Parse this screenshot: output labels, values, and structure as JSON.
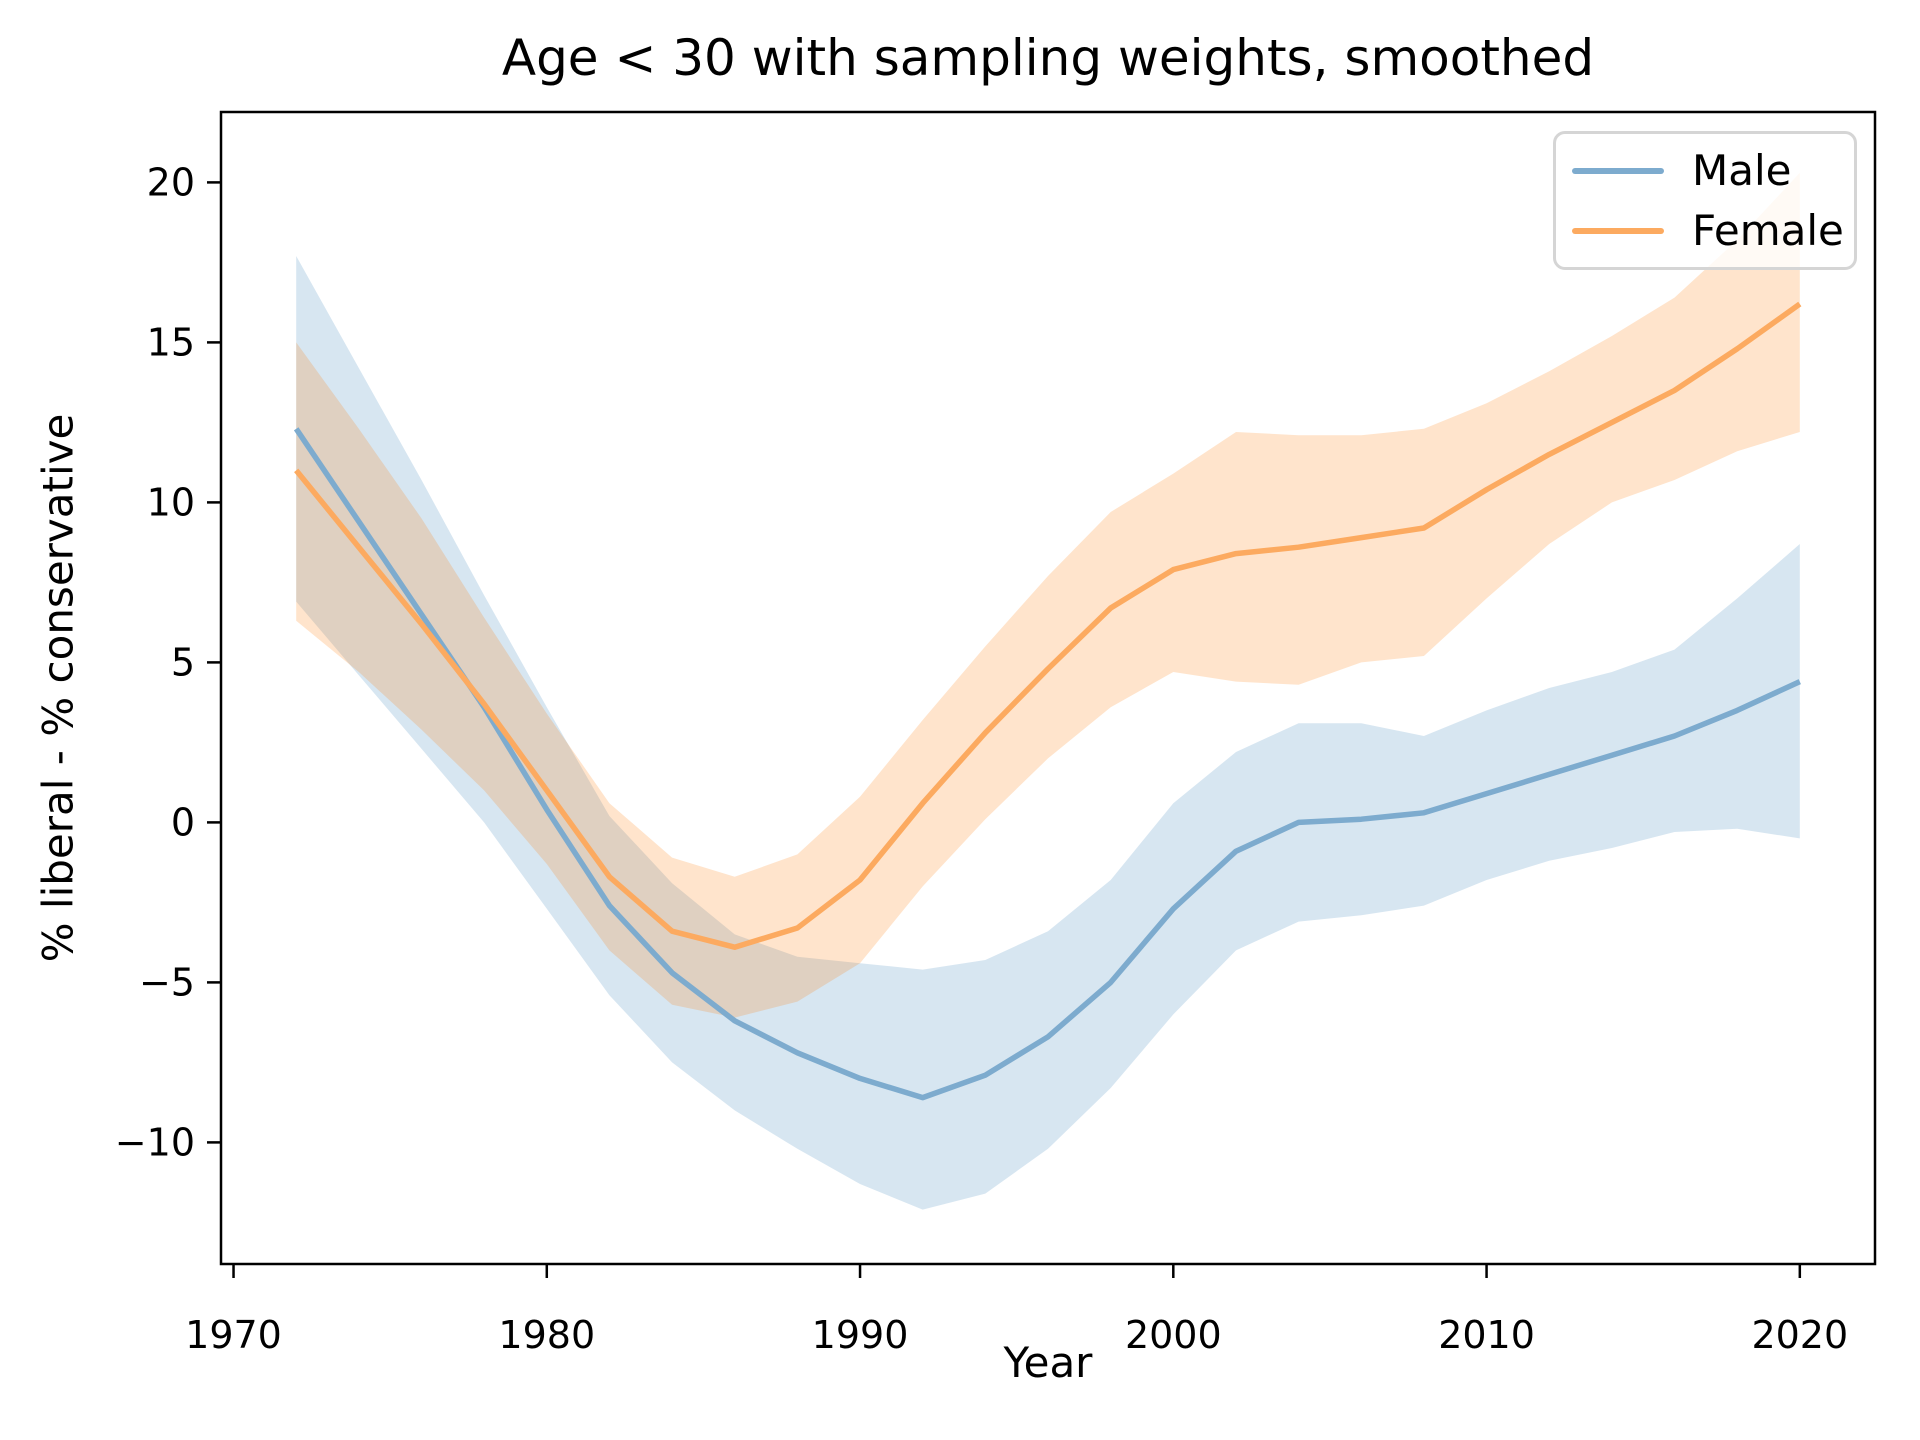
{
  "title": "Age < 30 with sampling weights, smoothed",
  "colors": {
    "male_line": "#7dabce",
    "female_line": "#fcaa60",
    "male_band_fill": "#1f77b4",
    "female_band_fill": "#ff7f0e",
    "male_band_opacity": 0.18,
    "female_band_opacity": 0.21,
    "axis": "#000000",
    "legend_border": "#d5d5d5"
  },
  "legend": {
    "items": [
      {
        "label": "Male",
        "color": "#7dabce"
      },
      {
        "label": "Female",
        "color": "#fcaa60"
      }
    ]
  },
  "chart_data": {
    "type": "line",
    "title": "Age < 30 with sampling weights, smoothed",
    "xlabel": "Year",
    "ylabel": "% liberal - % conservative",
    "legend_position": "upper right",
    "grid": false,
    "xlim": [
      1969.6,
      2022.4
    ],
    "ylim": [
      -13.8,
      22.2
    ],
    "x_ticks": [
      {
        "value": 1970,
        "label": "1970"
      },
      {
        "value": 1980,
        "label": "1980"
      },
      {
        "value": 1990,
        "label": "1990"
      },
      {
        "value": 2000,
        "label": "2000"
      },
      {
        "value": 2010,
        "label": "2010"
      },
      {
        "value": 2020,
        "label": "2020"
      }
    ],
    "y_ticks": [
      {
        "value": 20,
        "label": "20"
      },
      {
        "value": 15,
        "label": "15"
      },
      {
        "value": 10,
        "label": "10"
      },
      {
        "value": 5,
        "label": "5"
      },
      {
        "value": 0,
        "label": "0"
      },
      {
        "value": -5,
        "label": "−5"
      },
      {
        "value": -10,
        "label": "−10"
      }
    ],
    "x": [
      1972,
      1974,
      1976,
      1978,
      1980,
      1982,
      1984,
      1986,
      1988,
      1990,
      1992,
      1994,
      1996,
      1998,
      2000,
      2002,
      2004,
      2006,
      2008,
      2010,
      2012,
      2014,
      2016,
      2018,
      2020
    ],
    "series": [
      {
        "name": "Male",
        "values": [
          12.3,
          9.4,
          6.5,
          3.6,
          0.4,
          -2.6,
          -4.7,
          -6.2,
          -7.2,
          -8.0,
          -8.6,
          -7.9,
          -6.7,
          -5.0,
          -2.7,
          -0.9,
          0.0,
          0.1,
          0.3,
          0.9,
          1.5,
          2.1,
          2.7,
          3.5,
          4.4
        ],
        "upper": [
          17.7,
          14.2,
          10.7,
          7.1,
          3.6,
          0.2,
          -1.9,
          -3.5,
          -4.2,
          -4.4,
          -4.6,
          -4.3,
          -3.4,
          -1.8,
          0.6,
          2.2,
          3.1,
          3.1,
          2.7,
          3.5,
          4.2,
          4.7,
          5.4,
          7.0,
          8.7
        ],
        "lower": [
          6.9,
          4.6,
          2.3,
          0.0,
          -2.7,
          -5.4,
          -7.5,
          -9.0,
          -10.2,
          -11.3,
          -12.1,
          -11.6,
          -10.2,
          -8.3,
          -6.0,
          -4.0,
          -3.1,
          -2.9,
          -2.6,
          -1.8,
          -1.2,
          -0.8,
          -0.3,
          -0.2,
          -0.5
        ]
      },
      {
        "name": "Female",
        "values": [
          11.0,
          8.6,
          6.2,
          3.7,
          1.0,
          -1.7,
          -3.4,
          -3.9,
          -3.3,
          -1.8,
          0.6,
          2.8,
          4.8,
          6.7,
          7.9,
          8.4,
          8.6,
          8.9,
          9.2,
          10.4,
          11.5,
          12.5,
          13.5,
          14.8,
          16.2
        ],
        "upper": [
          15.0,
          12.3,
          9.5,
          6.4,
          3.4,
          0.6,
          -1.1,
          -1.7,
          -1.0,
          0.8,
          3.2,
          5.5,
          7.7,
          9.7,
          10.9,
          12.2,
          12.1,
          12.1,
          12.3,
          13.1,
          14.1,
          15.2,
          16.4,
          18.2,
          20.3
        ],
        "lower": [
          6.3,
          4.7,
          2.9,
          1.0,
          -1.3,
          -4.0,
          -5.7,
          -6.1,
          -5.6,
          -4.4,
          -2.0,
          0.1,
          2.0,
          3.6,
          4.7,
          4.4,
          4.3,
          5.0,
          5.2,
          7.0,
          8.7,
          10.0,
          10.7,
          11.6,
          12.2
        ]
      }
    ]
  }
}
